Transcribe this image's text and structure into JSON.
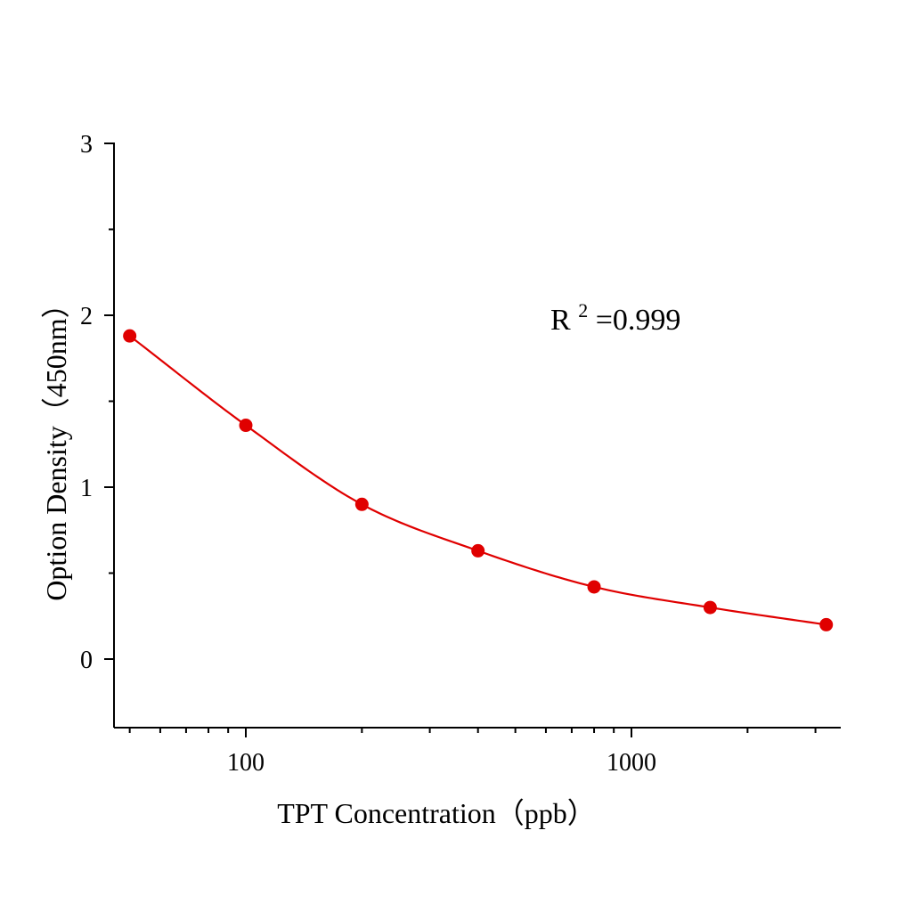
{
  "chart_data": {
    "type": "scatter",
    "title": "",
    "xlabel": "TPT Concentration（ppb）",
    "ylabel": "Option Density（450nm）",
    "x_scale": "log",
    "xlim": [
      45,
      3500
    ],
    "ylim": [
      -0.4,
      3
    ],
    "x_tick_labels": [
      "100",
      "1000"
    ],
    "y_tick_labels": [
      "0",
      "1",
      "2",
      "3"
    ],
    "annotation": {
      "base": "R",
      "sup": "2",
      "rest": "=0.999"
    },
    "color": "#e00000",
    "grid": false,
    "legend": "none",
    "series": [
      {
        "x": [
          50,
          100,
          200,
          400,
          800,
          1600,
          3200
        ],
        "y": [
          1.88,
          1.36,
          0.9,
          0.63,
          0.42,
          0.3,
          0.2
        ]
      }
    ]
  }
}
